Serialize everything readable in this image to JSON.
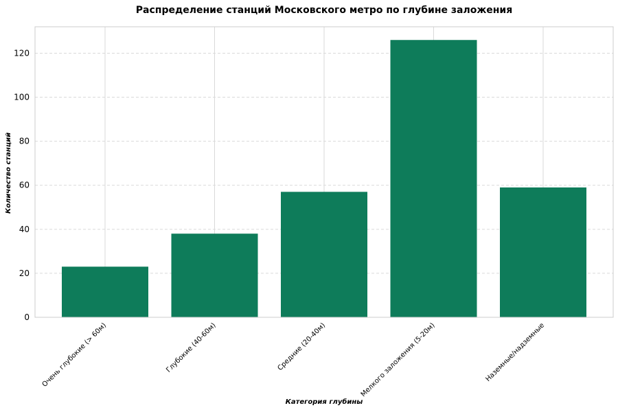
{
  "chart_data": {
    "type": "bar",
    "title": "Распределение станций Московского метро по глубине заложения",
    "xlabel": "Категория глубины",
    "ylabel": "Количество станций",
    "categories": [
      "Очень глубокие (> 60м)",
      "Глубокие (40-60м)",
      "Средние (20-40м)",
      "Мелкого заложения (5-20м)",
      "Наземные/надземные"
    ],
    "values": [
      23,
      38,
      57,
      126,
      59
    ],
    "ylim": [
      0,
      132
    ],
    "yticks": [
      0,
      20,
      40,
      60,
      80,
      100,
      120
    ],
    "bar_color": "#0e7c5a",
    "grid": true,
    "legend": "none"
  }
}
